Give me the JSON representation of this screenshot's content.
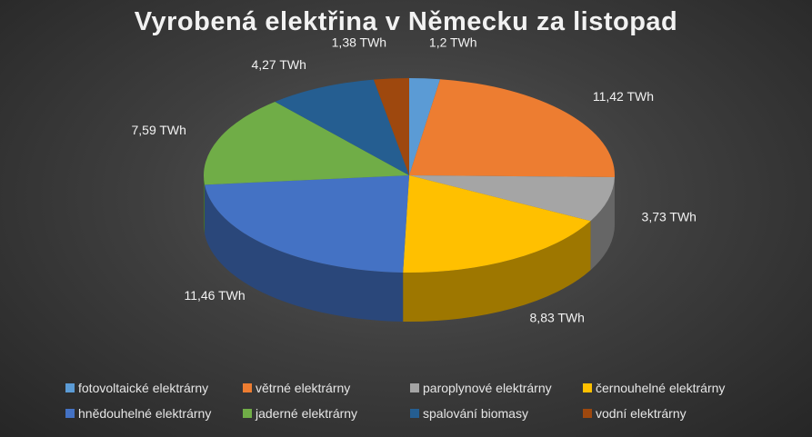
{
  "chart_data": {
    "type": "pie",
    "title": "Vyrobená elektřina v Německu za listopad",
    "unit": "TWh",
    "legend_position": "bottom",
    "slices": [
      {
        "name": "fotovoltaické elektrárny",
        "value": 1.2,
        "label": "1,2 TWh",
        "color": "#5b9bd5"
      },
      {
        "name": "větrné elektrárny",
        "value": 11.42,
        "label": "11,42 TWh",
        "color": "#ed7d31"
      },
      {
        "name": "paroplynové elektrárny",
        "value": 3.73,
        "label": "3,73 TWh",
        "color": "#a5a5a5"
      },
      {
        "name": "černouhelné elektrárny",
        "value": 8.83,
        "label": "8,83 TWh",
        "color": "#ffc000"
      },
      {
        "name": "hnědouhelné elektrárny",
        "value": 11.46,
        "label": "11,46 TWh",
        "color": "#4472c4"
      },
      {
        "name": "jaderné elektrárny",
        "value": 7.59,
        "label": "7,59 TWh",
        "color": "#70ad47"
      },
      {
        "name": "spalování biomasy",
        "value": 4.27,
        "label": "4,27 TWh",
        "color": "#255e91"
      },
      {
        "name": "vodní elektrárny",
        "value": 1.38,
        "label": "1,38 TWh",
        "color": "#9e480e"
      }
    ]
  }
}
